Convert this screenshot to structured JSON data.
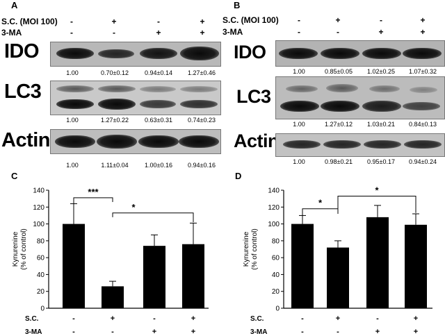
{
  "panels": {
    "A": {
      "letter": "A",
      "cond1_label": "S.C. (MOI 100)",
      "cond2_label": "3-MA",
      "cond1_signs": [
        "-",
        "+",
        "-",
        "+"
      ],
      "cond2_signs": [
        "-",
        "-",
        "+",
        "+"
      ],
      "blots": [
        {
          "protein": "IDO",
          "quant": [
            "1.00",
            "0.70±0.12",
            "0.94±0.14",
            "1.27±0.46"
          ]
        },
        {
          "protein": "LC3",
          "quant": [
            "1.00",
            "1.27±0.22",
            "0.63±0.31",
            "0.74±0.23"
          ]
        },
        {
          "protein": "Actin",
          "quant": [
            "1.00",
            "1.11±0.04",
            "1.00±0.16",
            "0.94±0.16"
          ]
        }
      ]
    },
    "B": {
      "letter": "B",
      "cond1_label": "S.C. (MOI 100)",
      "cond2_label": "3-MA",
      "cond1_signs": [
        "-",
        "+",
        "-",
        "+"
      ],
      "cond2_signs": [
        "-",
        "-",
        "+",
        "+"
      ],
      "blots": [
        {
          "protein": "IDO",
          "quant": [
            "1.00",
            "0.85±0.05",
            "1.02±0.25",
            "1.07±0.32"
          ]
        },
        {
          "protein": "LC3",
          "quant": [
            "1.00",
            "1.27±0.12",
            "1.03±0.21",
            "0.84±0.13"
          ]
        },
        {
          "protein": "Actin",
          "quant": [
            "1.00",
            "0.98±0.21",
            "0.95±0.17",
            "0.94±0.24"
          ]
        }
      ]
    },
    "C": {
      "letter": "C",
      "sc_label": "S.C.",
      "ma_label": "3-MA",
      "sc_signs": [
        "-",
        "+",
        "-",
        "+"
      ],
      "ma_signs": [
        "-",
        "-",
        "+",
        "+"
      ],
      "sig1": "***",
      "sig2": "*"
    },
    "D": {
      "letter": "D",
      "sc_label": "S.C.",
      "ma_label": "3-MA",
      "sc_signs": [
        "-",
        "+",
        "-",
        "+"
      ],
      "ma_signs": [
        "-",
        "-",
        "+",
        "+"
      ],
      "sig1": "*",
      "sig2": "*"
    }
  },
  "chart_data": [
    {
      "type": "bar",
      "panel": "C",
      "categories": [
        "S.C.- 3-MA-",
        "S.C.+ 3-MA-",
        "S.C.- 3-MA+",
        "S.C.+ 3-MA+"
      ],
      "values": [
        100,
        26,
        74,
        76
      ],
      "errors": [
        24,
        6,
        13,
        25
      ],
      "ylabel": "Kynurenine\n(% of control)",
      "ylim": [
        0,
        140
      ],
      "yticks": [
        0,
        20,
        40,
        60,
        80,
        100,
        120,
        140
      ],
      "bar_color": "#000000"
    },
    {
      "type": "bar",
      "panel": "D",
      "categories": [
        "S.C.- 3-MA-",
        "S.C.+ 3-MA-",
        "S.C.- 3-MA+",
        "S.C.+ 3-MA+"
      ],
      "values": [
        100,
        72,
        108,
        99
      ],
      "errors": [
        10,
        8,
        14,
        13
      ],
      "ylabel": "Kynurenine\n(% of control)",
      "ylim": [
        0,
        140
      ],
      "yticks": [
        0,
        20,
        40,
        60,
        80,
        100,
        120,
        140
      ],
      "bar_color": "#000000"
    }
  ]
}
